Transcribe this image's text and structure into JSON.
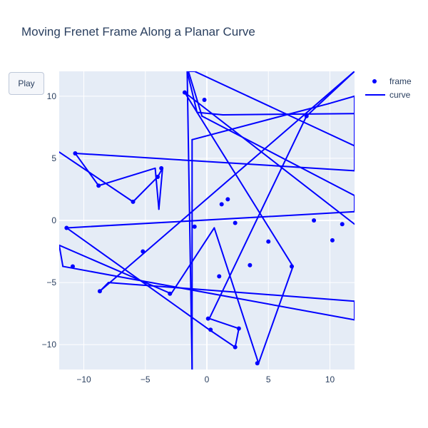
{
  "chart_data": {
    "type": "line",
    "title": "Moving Frenet Frame Along a Planar Curve",
    "xlabel": "",
    "ylabel": "",
    "xlim": [
      -12,
      12
    ],
    "ylim": [
      -12,
      12
    ],
    "xticks": [
      -10,
      -5,
      0,
      5,
      10
    ],
    "yticks": [
      -10,
      -5,
      0,
      5,
      10
    ],
    "xtick_labels": [
      "−10",
      "−5",
      "0",
      "5",
      "10"
    ],
    "ytick_labels": [
      "−10",
      "−5",
      "0",
      "5",
      "10"
    ],
    "grid": true,
    "legend_position": "top-right",
    "series": [
      {
        "name": "frame",
        "mode": "markers",
        "color": "#0000ff",
        "x": [
          -10.7,
          -8.8,
          -4.0,
          -3.7,
          -6.0,
          -11.4,
          -10.9,
          -8.7,
          -5.2,
          -3.0,
          -1.8,
          -0.2,
          -1.0,
          0.1,
          0.3,
          1.0,
          1.2,
          1.7,
          2.3,
          2.6,
          2.3,
          4.1,
          3.5,
          5.0,
          6.9,
          8.1,
          8.7,
          10.2,
          11.0
        ],
        "y": [
          5.4,
          2.8,
          3.5,
          4.2,
          1.5,
          -0.6,
          -3.7,
          -5.7,
          -2.5,
          -5.9,
          10.3,
          9.7,
          -0.5,
          -7.9,
          -8.8,
          -4.5,
          1.3,
          1.7,
          -0.2,
          -8.7,
          -10.2,
          -11.5,
          -3.6,
          -1.7,
          -3.7,
          8.4,
          0.0,
          -1.6,
          -0.3
        ]
      },
      {
        "name": "curve",
        "mode": "lines",
        "color": "#0000ff",
        "x": [
          -12.0,
          -6.0,
          -4.0,
          -3.6,
          -3.9,
          -4.2,
          -8.8,
          -10.7,
          12.0,
          12.0,
          9.9,
          -1.2,
          -1.2,
          -1.6,
          -0.8,
          1.3,
          12.0,
          12.0,
          -1.0,
          -1.5,
          -0.4,
          12.0,
          12.0,
          -11.4,
          0.2,
          2.3,
          2.6,
          0.2,
          8.1,
          12.0,
          -8.7,
          -8.0,
          12.0,
          12.0,
          -11.7,
          -12.0,
          -2.9,
          0.6,
          4.2,
          7.0,
          -1.8,
          12.0
        ],
        "y": [
          5.5,
          1.5,
          3.5,
          4.2,
          0.9,
          4.2,
          2.8,
          5.4,
          4.0,
          10.0,
          9.4,
          6.5,
          -12.0,
          12.0,
          8.7,
          8.5,
          8.6,
          6.0,
          12.0,
          12.0,
          8.4,
          2.0,
          0.7,
          -0.6,
          -8.8,
          -10.2,
          -8.7,
          -7.9,
          8.4,
          12.0,
          -5.7,
          -5.0,
          -6.5,
          -8.0,
          -3.7,
          -2.0,
          -5.9,
          -0.6,
          -11.5,
          -3.7,
          10.3,
          -0.3
        ]
      }
    ]
  },
  "buttons": {
    "play_label": "Play"
  }
}
